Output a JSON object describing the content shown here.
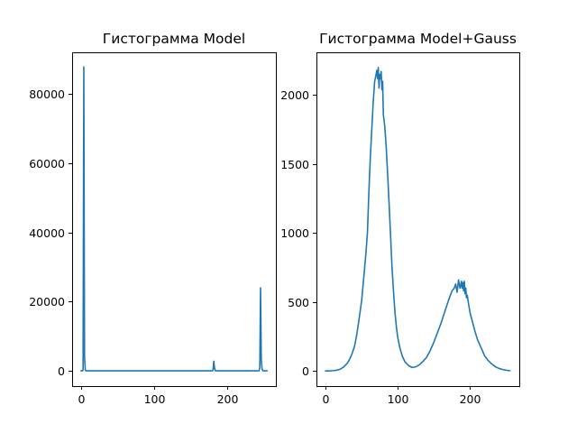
{
  "chart_data": [
    {
      "type": "line",
      "title": "Гистограмма Model",
      "xlabel": "",
      "ylabel": "",
      "xlim": [
        -12,
        267
      ],
      "ylim": [
        -4400,
        92000
      ],
      "xticks": [
        0,
        100,
        200
      ],
      "yticks": [
        0,
        20000,
        40000,
        60000,
        80000
      ],
      "xtick_labels": [
        "0",
        "100",
        "200"
      ],
      "ytick_labels": [
        "0",
        "20000",
        "40000",
        "60000",
        "80000"
      ],
      "grid": false,
      "series": [
        {
          "color": "#1f77b4",
          "x": [
            0,
            1,
            2,
            3,
            4,
            5,
            6,
            7,
            8,
            9,
            10,
            20,
            50,
            100,
            150,
            180,
            181,
            182,
            183,
            184,
            185,
            186,
            200,
            240,
            244,
            245,
            246,
            247,
            248,
            249,
            250,
            251,
            252,
            255
          ],
          "y": [
            0,
            0,
            0,
            200,
            87800,
            4000,
            300,
            0,
            0,
            0,
            0,
            0,
            0,
            0,
            0,
            0,
            300,
            2800,
            700,
            100,
            0,
            0,
            0,
            0,
            0,
            1000,
            24000,
            3500,
            600,
            100,
            0,
            0,
            0,
            0
          ]
        }
      ]
    },
    {
      "type": "line",
      "title": "Гистограмма Model+Gauss",
      "xlabel": "",
      "ylabel": "",
      "xlim": [
        -12.5,
        268
      ],
      "ylim": [
        -110,
        2310
      ],
      "xticks": [
        0,
        100,
        200
      ],
      "yticks": [
        0,
        500,
        1000,
        1500,
        2000
      ],
      "xtick_labels": [
        "0",
        "100",
        "200"
      ],
      "ytick_labels": [
        "0",
        "500",
        "1000",
        "1500",
        "2000"
      ],
      "grid": false,
      "series": [
        {
          "color": "#1f77b4",
          "x": [
            0,
            5,
            10,
            15,
            20,
            25,
            30,
            33,
            36,
            40,
            43,
            46,
            50,
            53,
            56,
            58,
            60,
            62,
            64,
            66,
            68,
            70,
            71,
            72,
            73,
            74,
            75,
            76,
            77,
            78,
            79,
            80,
            82,
            84,
            86,
            88,
            90,
            92,
            94,
            96,
            98,
            100,
            103,
            106,
            110,
            115,
            120,
            125,
            130,
            135,
            140,
            145,
            150,
            155,
            160,
            165,
            170,
            175,
            178,
            180,
            182,
            184,
            186,
            187,
            188,
            189,
            190,
            191,
            192,
            193,
            194,
            195,
            196,
            198,
            200,
            203,
            206,
            210,
            215,
            220,
            225,
            230,
            235,
            240,
            245,
            250,
            255
          ],
          "y": [
            0,
            0,
            2,
            5,
            12,
            28,
            55,
            80,
            115,
            175,
            255,
            360,
            510,
            680,
            860,
            1000,
            1300,
            1550,
            1750,
            1950,
            2100,
            2150,
            2180,
            2120,
            2200,
            2050,
            2150,
            2120,
            2170,
            2040,
            2100,
            1860,
            1770,
            1620,
            1420,
            1210,
            980,
            750,
            580,
            430,
            320,
            240,
            165,
            110,
            65,
            38,
            25,
            30,
            45,
            70,
            100,
            150,
            210,
            280,
            350,
            430,
            510,
            580,
            600,
            630,
            570,
            660,
            600,
            620,
            650,
            600,
            640,
            580,
            650,
            560,
            600,
            530,
            550,
            480,
            420,
            360,
            300,
            230,
            170,
            110,
            75,
            50,
            30,
            18,
            10,
            5,
            2
          ]
        }
      ]
    }
  ]
}
